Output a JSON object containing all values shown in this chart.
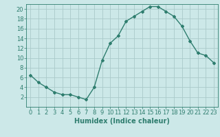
{
  "x": [
    0,
    1,
    2,
    3,
    4,
    5,
    6,
    7,
    8,
    9,
    10,
    11,
    12,
    13,
    14,
    15,
    16,
    17,
    18,
    19,
    20,
    21,
    22,
    23
  ],
  "y": [
    6.5,
    5.0,
    4.0,
    3.0,
    2.5,
    2.5,
    2.0,
    1.5,
    4.0,
    9.5,
    13.0,
    14.5,
    17.5,
    18.5,
    19.5,
    20.5,
    20.5,
    19.5,
    18.5,
    16.5,
    13.5,
    11.0,
    10.5,
    9.0
  ],
  "line_color": "#2e7d6e",
  "marker": "D",
  "marker_size": 2,
  "bg_color": "#cce8e8",
  "grid_color": "#aacaca",
  "xlabel": "Humidex (Indice chaleur)",
  "xlim": [
    -0.5,
    23.5
  ],
  "ylim": [
    0,
    21
  ],
  "yticks": [
    2,
    4,
    6,
    8,
    10,
    12,
    14,
    16,
    18,
    20
  ],
  "xtick_labels": [
    "0",
    "1",
    "2",
    "3",
    "4",
    "5",
    "6",
    "7",
    "8",
    "9",
    "10",
    "11",
    "12",
    "13",
    "14",
    "15",
    "16",
    "17",
    "18",
    "19",
    "20",
    "21",
    "22",
    "23"
  ],
  "label_fontsize": 7,
  "tick_fontsize": 6
}
